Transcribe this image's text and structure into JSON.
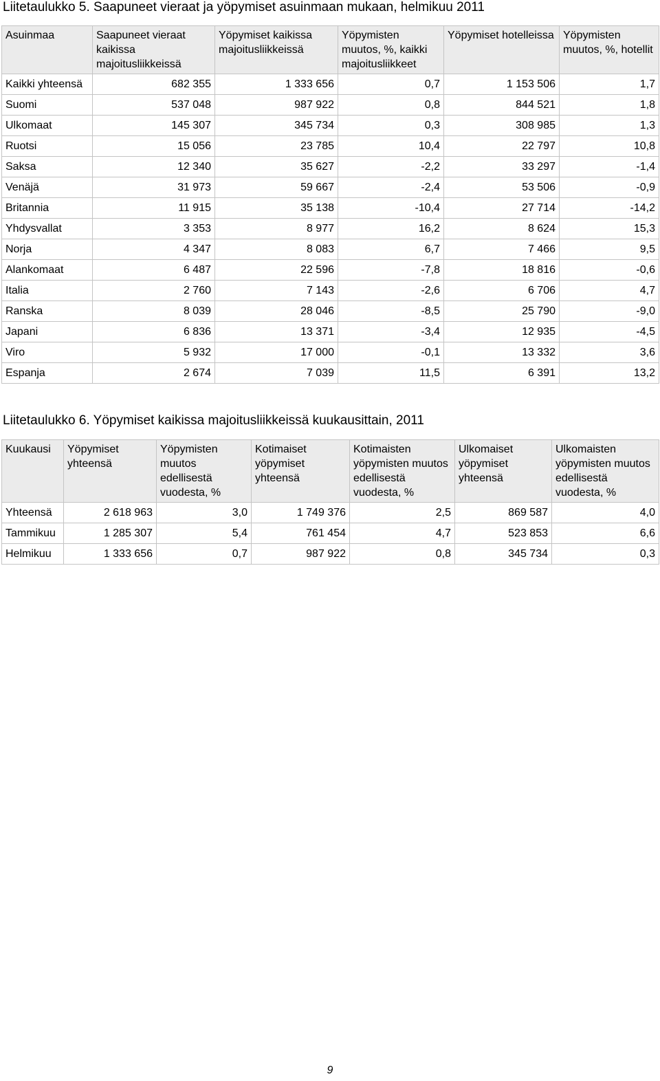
{
  "table5": {
    "caption": "Liitetaulukko 5. Saapuneet vieraat ja yöpymiset asuinmaan mukaan, helmikuu 2011",
    "headers": [
      "Asuinmaa",
      "Saapuneet vieraat kaikissa majoitusliikkeissä",
      "Yöpymiset kaikissa majoitusliikkeissä",
      "Yöpymisten muutos, %, kaikki majoitusliikkeet",
      "Yöpymiset hotelleissa",
      "Yöpymisten muutos, %, hotellit"
    ],
    "rows": [
      [
        "Kaikki yhteensä",
        "682 355",
        "1 333 656",
        "0,7",
        "1 153 506",
        "1,7"
      ],
      [
        "Suomi",
        "537 048",
        "987 922",
        "0,8",
        "844 521",
        "1,8"
      ],
      [
        "Ulkomaat",
        "145 307",
        "345 734",
        "0,3",
        "308 985",
        "1,3"
      ],
      [
        "Ruotsi",
        "15 056",
        "23 785",
        "10,4",
        "22 797",
        "10,8"
      ],
      [
        "Saksa",
        "12 340",
        "35 627",
        "-2,2",
        "33 297",
        "-1,4"
      ],
      [
        "Venäjä",
        "31 973",
        "59 667",
        "-2,4",
        "53 506",
        "-0,9"
      ],
      [
        "Britannia",
        "11 915",
        "35 138",
        "-10,4",
        "27 714",
        "-14,2"
      ],
      [
        "Yhdysvallat",
        "3 353",
        "8 977",
        "16,2",
        "8 624",
        "15,3"
      ],
      [
        "Norja",
        "4 347",
        "8 083",
        "6,7",
        "7 466",
        "9,5"
      ],
      [
        "Alankomaat",
        "6 487",
        "22 596",
        "-7,8",
        "18 816",
        "-0,6"
      ],
      [
        "Italia",
        "2 760",
        "7 143",
        "-2,6",
        "6 706",
        "4,7"
      ],
      [
        "Ranska",
        "8 039",
        "28 046",
        "-8,5",
        "25 790",
        "-9,0"
      ],
      [
        "Japani",
        "6 836",
        "13 371",
        "-3,4",
        "12 935",
        "-4,5"
      ],
      [
        "Viro",
        "5 932",
        "17 000",
        "-0,1",
        "13 332",
        "3,6"
      ],
      [
        "Espanja",
        "2 674",
        "7 039",
        "11,5",
        "6 391",
        "13,2"
      ]
    ]
  },
  "table6": {
    "caption": "Liitetaulukko 6. Yöpymiset kaikissa majoitusliikkeissä kuukausittain, 2011",
    "headers": [
      "Kuukausi",
      "Yöpymiset yhteensä",
      "Yöpymisten muutos edellisestä vuodesta, %",
      "Kotimaiset yöpymiset yhteensä",
      "Kotimaisten yöpymisten muutos edellisestä vuodesta, %",
      "Ulkomaiset yöpymiset yhteensä",
      "Ulkomaisten yöpymisten muutos edellisestä vuodesta, %"
    ],
    "rows": [
      [
        "Yhteensä",
        "2 618 963",
        "3,0",
        "1 749 376",
        "2,5",
        "869 587",
        "4,0"
      ],
      [
        "Tammikuu",
        "1 285 307",
        "5,4",
        "761 454",
        "4,7",
        "523 853",
        "6,6"
      ],
      [
        "Helmikuu",
        "1 333 656",
        "0,7",
        "987 922",
        "0,8",
        "345 734",
        "0,3"
      ]
    ]
  },
  "page_number": "9"
}
